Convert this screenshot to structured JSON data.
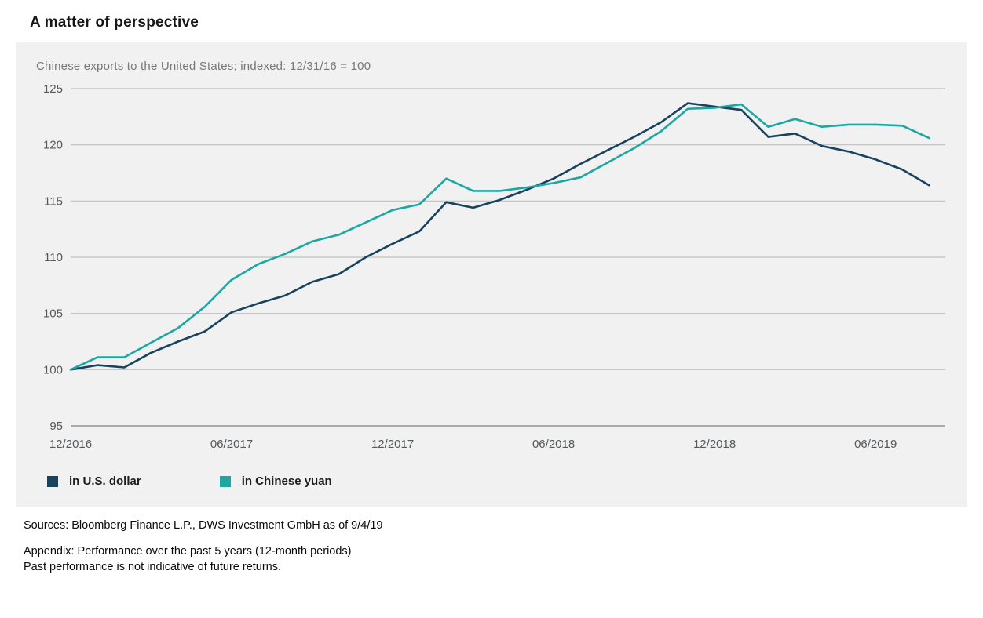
{
  "page": {
    "title": "A matter of perspective",
    "sources": "Sources: Bloomberg Finance L.P., DWS Investment GmbH as of 9/4/19",
    "appendix_line1": "Appendix: Performance over the past 5 years (12-month periods)",
    "appendix_line2": "Past performance is not indicative of future returns."
  },
  "chart_data": {
    "type": "line",
    "title": "A matter of perspective",
    "subtitle": "Chinese exports to the United States; indexed: 12/31/16 = 100",
    "x_unit": "month",
    "x_start": "12/2016",
    "x_end": "08/2019",
    "x_axis_max": 32.6,
    "x_ticks": [
      {
        "month": 0,
        "label": "12/2016"
      },
      {
        "month": 6,
        "label": "06/2017"
      },
      {
        "month": 12,
        "label": "12/2017"
      },
      {
        "month": 18,
        "label": "06/2018"
      },
      {
        "month": 24,
        "label": "12/2018"
      },
      {
        "month": 30,
        "label": "06/2019"
      }
    ],
    "y_ticks": [
      95,
      100,
      105,
      110,
      115,
      120,
      125
    ],
    "ylim": [
      95,
      125
    ],
    "grid": true,
    "legend_position": "bottom",
    "series": [
      {
        "name": "in U.S. dollar",
        "color": "#17435f",
        "values": [
          100.0,
          100.4,
          100.2,
          101.5,
          102.5,
          103.4,
          105.1,
          105.9,
          106.6,
          107.8,
          108.5,
          110.0,
          111.2,
          112.3,
          114.9,
          114.4,
          115.1,
          116.0,
          117.0,
          118.3,
          119.5,
          120.7,
          122.0,
          123.7,
          123.4,
          123.1,
          120.7,
          121.0,
          119.9,
          119.4,
          118.7,
          117.8,
          116.4
        ]
      },
      {
        "name": "in Chinese yuan",
        "color": "#1ba8a0",
        "values": [
          100.0,
          101.1,
          101.1,
          102.4,
          103.7,
          105.6,
          108.0,
          109.4,
          110.3,
          111.4,
          112.0,
          113.1,
          114.2,
          114.7,
          117.0,
          115.9,
          115.9,
          116.2,
          116.6,
          117.1,
          118.4,
          119.7,
          121.2,
          123.2,
          123.3,
          123.6,
          121.6,
          122.3,
          121.6,
          121.8,
          121.8,
          121.7,
          120.6
        ]
      }
    ]
  }
}
